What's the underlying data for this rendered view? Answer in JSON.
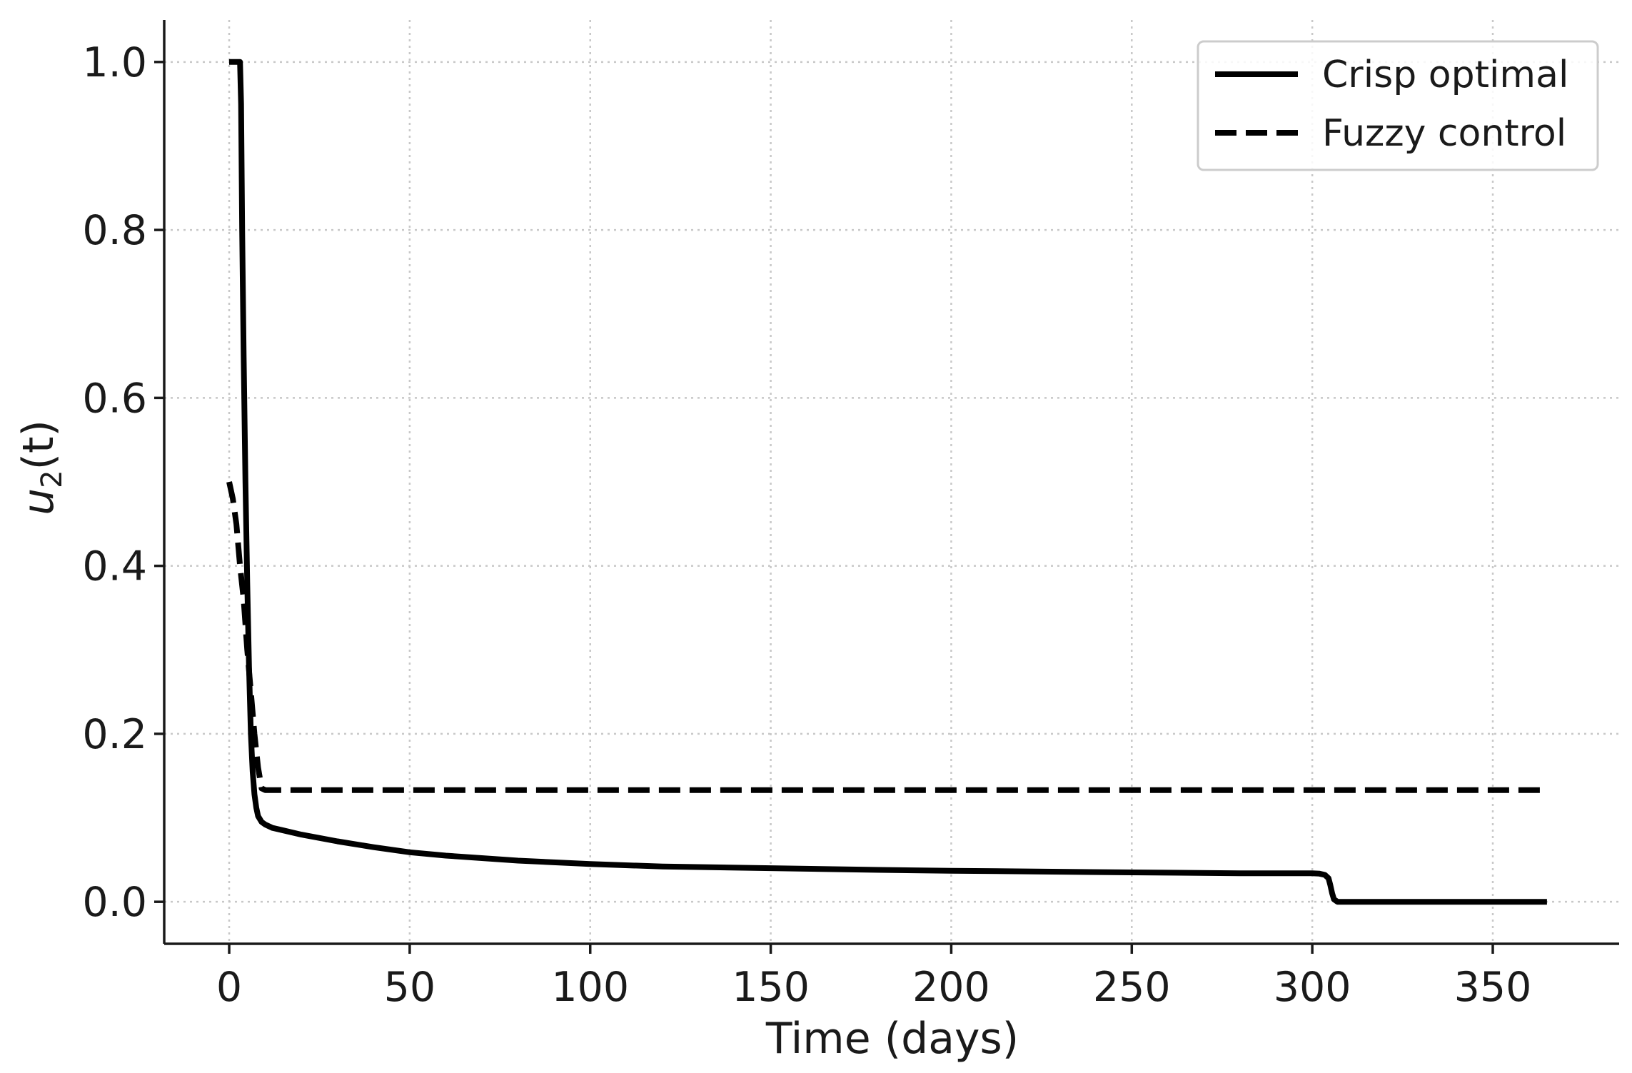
{
  "chart_data": {
    "type": "line",
    "title": "",
    "xlabel": "Time (days)",
    "ylabel_main": "u",
    "ylabel_sub": "2",
    "ylabel_tail": "(t)",
    "xlim": [
      -18,
      385
    ],
    "ylim": [
      -0.05,
      1.05
    ],
    "xticks": [
      0,
      50,
      100,
      150,
      200,
      250,
      300,
      350
    ],
    "xtick_labels": [
      "0",
      "50",
      "100",
      "150",
      "200",
      "250",
      "300",
      "350"
    ],
    "yticks": [
      0.0,
      0.2,
      0.4,
      0.6,
      0.8,
      1.0
    ],
    "ytick_labels": [
      "0.0",
      "0.2",
      "0.4",
      "0.6",
      "0.8",
      "1.0"
    ],
    "grid": true,
    "legend_position": "top-right",
    "series": [
      {
        "name": "Crisp optimal",
        "style": "solid",
        "color": "#000000",
        "x": [
          0,
          1,
          2,
          3,
          3.3,
          3.6,
          4,
          4.5,
          5,
          5.5,
          6,
          6.5,
          7,
          7.5,
          8,
          9,
          10,
          12,
          15,
          20,
          30,
          40,
          50,
          60,
          80,
          100,
          120,
          150,
          180,
          200,
          250,
          280,
          300,
          302,
          303.5,
          304.5,
          305,
          305.5,
          306,
          307,
          310,
          330,
          350,
          365
        ],
        "y": [
          1.0,
          1.0,
          1.0,
          1.0,
          0.95,
          0.8,
          0.65,
          0.5,
          0.38,
          0.28,
          0.2,
          0.155,
          0.128,
          0.112,
          0.102,
          0.095,
          0.092,
          0.088,
          0.085,
          0.08,
          0.072,
          0.065,
          0.059,
          0.055,
          0.049,
          0.045,
          0.042,
          0.04,
          0.038,
          0.037,
          0.035,
          0.034,
          0.034,
          0.0335,
          0.032,
          0.028,
          0.02,
          0.01,
          0.003,
          0.0,
          0.0,
          0.0,
          0.0,
          0.0
        ]
      },
      {
        "name": "Fuzzy control",
        "style": "dashed",
        "color": "#000000",
        "x": [
          0,
          1,
          2,
          3,
          4,
          5,
          6,
          7,
          8,
          9,
          10,
          15,
          50,
          100,
          150,
          200,
          250,
          300,
          350,
          365
        ],
        "y": [
          0.5,
          0.48,
          0.45,
          0.4,
          0.36,
          0.3,
          0.25,
          0.2,
          0.16,
          0.135,
          0.133,
          0.133,
          0.133,
          0.133,
          0.133,
          0.133,
          0.133,
          0.133,
          0.133,
          0.133
        ]
      }
    ]
  }
}
